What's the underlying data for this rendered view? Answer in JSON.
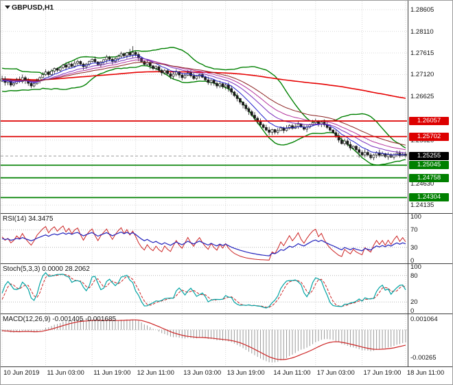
{
  "window": {
    "symbol_label": "GBPUSD,H1"
  },
  "chart_data": {
    "type": "candlestick",
    "title": "GBPUSD,H1",
    "symbol": "GBPUSD",
    "timeframe": "H1",
    "price_range": [
      1.2398,
      1.2878
    ],
    "closes": [
      1.2702,
      1.2694,
      1.2698,
      1.2688,
      1.2692,
      1.27,
      1.2696,
      1.2705,
      1.2698,
      1.2692,
      1.2686,
      1.2691,
      1.2699,
      1.2705,
      1.2712,
      1.2718,
      1.2712,
      1.272,
      1.2726,
      1.2722,
      1.2728,
      1.2734,
      1.2729,
      1.2736,
      1.2731,
      1.2738,
      1.2742,
      1.2736,
      1.273,
      1.2736,
      1.2742,
      1.2747,
      1.2741,
      1.2735,
      1.2741,
      1.2746,
      1.2752,
      1.2747,
      1.2742,
      1.2748,
      1.2754,
      1.276,
      1.2755,
      1.2762,
      1.2757,
      1.2763,
      1.2758,
      1.275,
      1.2742,
      1.2735,
      1.274,
      1.2732,
      1.2726,
      1.273,
      1.2722,
      1.2716,
      1.2721,
      1.2714,
      1.2708,
      1.2713,
      1.2718,
      1.2711,
      1.2705,
      1.271,
      1.2716,
      1.2709,
      1.2703,
      1.2708,
      1.2712,
      1.2706,
      1.27,
      1.2694,
      1.2699,
      1.2692,
      1.2686,
      1.2691,
      1.2684,
      1.2688,
      1.268,
      1.2672,
      1.2664,
      1.2657,
      1.2649,
      1.2642,
      1.2634,
      1.2627,
      1.2619,
      1.2612,
      1.2604,
      1.2597,
      1.2591,
      1.2585,
      1.258,
      1.2586,
      1.258,
      1.2584,
      1.259,
      1.2584,
      1.2589,
      1.2595,
      1.2589,
      1.2593,
      1.2599,
      1.2592,
      1.2587,
      1.2592,
      1.2597,
      1.2602,
      1.2605,
      1.2599,
      1.2603,
      1.2597,
      1.2591,
      1.2585,
      1.2579,
      1.2572,
      1.2562,
      1.2554,
      1.256,
      1.2552,
      1.2544,
      1.2548,
      1.254,
      1.2534,
      1.2528,
      1.2534,
      1.2528,
      1.2522,
      1.2528,
      1.2533,
      1.2527,
      1.2531,
      1.2524,
      1.2529,
      1.2523,
      1.2528,
      1.2532,
      1.2526,
      1.253,
      1.25255
    ],
    "x_tick_bars": [
      0,
      15,
      31,
      46,
      62,
      77,
      93,
      108,
      124,
      139
    ],
    "x_tick_labels": [
      "10 Jun 2019",
      "11 Jun 03:00",
      "11 Jun 19:00",
      "12 Jun 11:00",
      "13 Jun 03:00",
      "13 Jun 19:00",
      "14 Jun 11:00",
      "17 Jun 03:00",
      "17 Jun 19:00",
      "18 Jun 11:00"
    ],
    "y_ticks": [
      {
        "label": "1.28605",
        "price": 1.28605
      },
      {
        "label": "1.28110",
        "price": 1.2811
      },
      {
        "label": "1.27615",
        "price": 1.27615
      },
      {
        "label": "1.27120",
        "price": 1.2712
      },
      {
        "label": "1.26625",
        "price": 1.26625
      },
      {
        "label": "1.25620",
        "price": 1.2562
      },
      {
        "label": "1.24630",
        "price": 1.2463
      },
      {
        "label": "1.24135",
        "price": 1.24135
      }
    ],
    "levels": {
      "resistance": [
        {
          "label": "1.26057",
          "price": 1.26057
        },
        {
          "label": "1.25702",
          "price": 1.25702
        }
      ],
      "support": [
        {
          "label": "1.25045",
          "price": 1.25045
        },
        {
          "label": "1.24758",
          "price": 1.24758
        },
        {
          "label": "1.24304",
          "price": 1.24304
        }
      ],
      "current": {
        "label": "1.25255",
        "price": 1.25255
      }
    },
    "colors": {
      "resistance_line": "#dd0000",
      "support_line": "#008000",
      "current_tag": "#000000",
      "bollinger": "#008000",
      "slow_ma": "#e60000",
      "candle": "#1b1b1b",
      "ema_fan": [
        "#2222cc",
        "#7b2fbe",
        "#b3309a",
        "#8b2020"
      ]
    },
    "overlays": {
      "bollinger": {
        "period": 20,
        "deviation": 2
      },
      "slow_ma": {
        "period": 140
      },
      "ema_fan": {
        "periods": [
          8,
          16,
          24,
          34
        ]
      }
    },
    "indicator_panels": [
      {
        "id": "rsi",
        "label": "RSI(14) 34.3475",
        "value": 34.3475,
        "levels": [
          70,
          30
        ],
        "ticks": [
          {
            "label": "100",
            "value": 100
          },
          {
            "label": "70",
            "value": 70
          },
          {
            "label": "30",
            "value": 30
          },
          {
            "label": "0",
            "value": 0
          }
        ],
        "colors": {
          "main": "#2020bb",
          "secondary": "#cc2222"
        }
      },
      {
        "id": "stoch",
        "label": "Stoch(5,3,3) 0.0000 28.2062",
        "values": [
          0.0,
          28.2062
        ],
        "levels": [
          80,
          20
        ],
        "ticks": [
          {
            "label": "100",
            "value": 100
          },
          {
            "label": "80",
            "value": 80
          },
          {
            "label": "20",
            "value": 20
          },
          {
            "label": "0",
            "value": 0
          }
        ],
        "colors": {
          "main": "#00a3a3",
          "signal": "#cc2222"
        }
      },
      {
        "id": "macd",
        "label": "MACD(12,26,9) -0.001405 -0.001685",
        "values": [
          -0.001405,
          -0.001685
        ],
        "range": [
          -0.0033,
          0.0013
        ],
        "ticks": [
          {
            "label": "0.001064",
            "value": 0.001064
          },
          {
            "label": "-0.00265",
            "value": -0.00265
          }
        ],
        "colors": {
          "hist": "#9a9a9a",
          "signal": "#cc2222"
        }
      }
    ]
  }
}
